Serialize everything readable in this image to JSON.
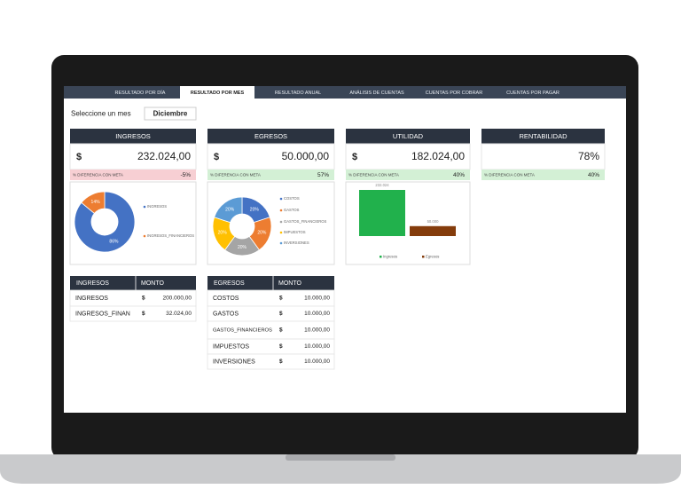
{
  "tabs": {
    "items": [
      "RESULTADO POR DÍA",
      "RESULTADO POR MES",
      "RESULTADO ANUAL",
      "ANÁLISIS DE CUENTAS",
      "CUENTAS POR COBRAR",
      "CUENTAS POR PAGAR"
    ],
    "active": 1
  },
  "selector": {
    "label": "Seleccione un mes",
    "value": "Diciembre"
  },
  "cards": [
    {
      "title": "INGRESOS",
      "currency": "$",
      "amount": "232.024,00",
      "diff_label": "% DIFERENCIA CON META",
      "diff_value": "-5%",
      "diff_color": "#f7cfd3"
    },
    {
      "title": "EGRESOS",
      "currency": "$",
      "amount": "50.000,00",
      "diff_label": "% DIFERENCIA CON META",
      "diff_value": "57%",
      "diff_color": "#d3f0d5"
    },
    {
      "title": "UTILIDAD",
      "currency": "$",
      "amount": "182.024,00",
      "diff_label": "% DIFERENCIA CON META",
      "diff_value": "40%",
      "diff_color": "#d3f0d5"
    },
    {
      "title": "RENTABILIDAD",
      "amount": "78%",
      "diff_label": "% DIFERENCIA CON META",
      "diff_value": "40%",
      "diff_color": "#d3f0d5"
    }
  ],
  "charts": [
    {
      "type": "pie",
      "categories": [
        "INGRESOS",
        "INGRESOS_FINANCIEROS"
      ],
      "values": [
        86,
        14
      ],
      "value_labels": [
        "86%",
        "14%"
      ],
      "colors": [
        "#4472c4",
        "#ed7d31"
      ]
    },
    {
      "type": "pie",
      "categories": [
        "COSTOS",
        "GASTOS",
        "GASTOS_FINANCIEROS",
        "IMPUESTOS",
        "INVERSIONES"
      ],
      "values": [
        20,
        20,
        20,
        20,
        20
      ],
      "value_labels": [
        "20%",
        "20%",
        "20%",
        "20%",
        "20%"
      ],
      "colors": [
        "#4472c4",
        "#ed7d31",
        "#a5a5a5",
        "#ffc000",
        "#5b9bd5"
      ]
    },
    {
      "type": "bar",
      "categories": [
        "Ingresos",
        "Egresos"
      ],
      "values": [
        232024,
        50000
      ],
      "value_labels": [
        "232.024",
        "50.000"
      ],
      "colors": [
        "#21b14c",
        "#843c0c"
      ]
    }
  ],
  "tables": [
    {
      "headers": [
        "INGRESOS",
        "MONTO"
      ],
      "rows": [
        [
          "INGRESOS",
          "$",
          "200.000,00"
        ],
        [
          "INGRESOS_FINAN",
          "$",
          "32.024,00"
        ]
      ]
    },
    {
      "headers": [
        "EGRESOS",
        "MONTO"
      ],
      "rows": [
        [
          "COSTOS",
          "$",
          "10.000,00"
        ],
        [
          "GASTOS",
          "$",
          "10.000,00"
        ],
        [
          "GASTOS_FINANCIEROS",
          "$",
          "10.000,00"
        ],
        [
          "IMPUESTOS",
          "$",
          "10.000,00"
        ],
        [
          "INVERSIONES",
          "$",
          "10.000,00"
        ]
      ]
    }
  ]
}
